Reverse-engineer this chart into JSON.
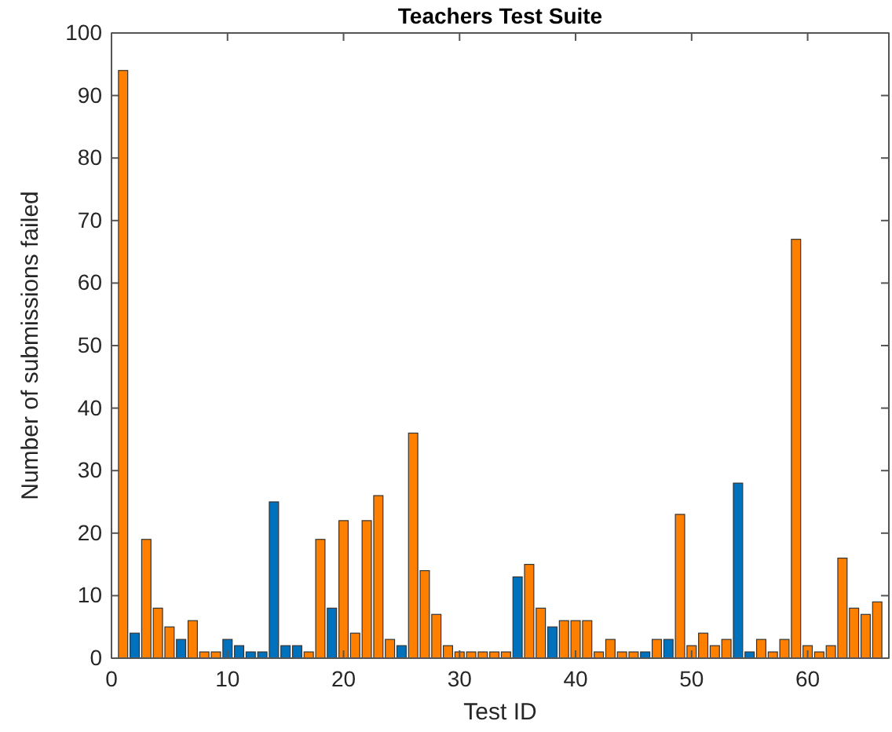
{
  "chart_data": {
    "type": "bar",
    "title": "Teachers Test Suite",
    "xlabel": "Test ID",
    "ylabel": "Number of submissions failed",
    "x": [
      1,
      2,
      3,
      4,
      5,
      6,
      7,
      8,
      9,
      10,
      11,
      12,
      13,
      14,
      15,
      16,
      17,
      18,
      19,
      20,
      21,
      22,
      23,
      24,
      25,
      26,
      27,
      28,
      29,
      30,
      31,
      32,
      33,
      34,
      35,
      36,
      37,
      38,
      39,
      40,
      41,
      42,
      43,
      44,
      45,
      46,
      47,
      48,
      49,
      50,
      51,
      52,
      53,
      54,
      55,
      56,
      57,
      58,
      59,
      60,
      61,
      62,
      63,
      64,
      65,
      66
    ],
    "values": [
      94,
      4,
      19,
      8,
      5,
      3,
      6,
      1,
      1,
      3,
      2,
      1,
      1,
      25,
      2,
      2,
      1,
      19,
      8,
      22,
      4,
      22,
      26,
      3,
      2,
      36,
      14,
      7,
      2,
      1,
      1,
      1,
      1,
      1,
      13,
      15,
      8,
      5,
      6,
      6,
      6,
      1,
      3,
      1,
      1,
      1,
      3,
      3,
      23,
      2,
      4,
      2,
      3,
      28,
      1,
      3,
      1,
      3,
      67,
      2,
      1,
      2,
      16,
      8,
      7,
      9
    ],
    "colors": [
      "#ff8000",
      "#0072bd",
      "#ff8000",
      "#ff8000",
      "#ff8000",
      "#0072bd",
      "#ff8000",
      "#ff8000",
      "#ff8000",
      "#0072bd",
      "#0072bd",
      "#0072bd",
      "#0072bd",
      "#0072bd",
      "#0072bd",
      "#0072bd",
      "#ff8000",
      "#ff8000",
      "#0072bd",
      "#ff8000",
      "#ff8000",
      "#ff8000",
      "#ff8000",
      "#ff8000",
      "#0072bd",
      "#ff8000",
      "#ff8000",
      "#ff8000",
      "#ff8000",
      "#ff8000",
      "#ff8000",
      "#ff8000",
      "#ff8000",
      "#ff8000",
      "#0072bd",
      "#ff8000",
      "#ff8000",
      "#0072bd",
      "#ff8000",
      "#ff8000",
      "#ff8000",
      "#ff8000",
      "#ff8000",
      "#ff8000",
      "#ff8000",
      "#0072bd",
      "#ff8000",
      "#0072bd",
      "#ff8000",
      "#ff8000",
      "#ff8000",
      "#ff8000",
      "#ff8000",
      "#0072bd",
      "#0072bd",
      "#ff8000",
      "#ff8000",
      "#ff8000",
      "#ff8000",
      "#ff8000",
      "#ff8000",
      "#ff8000",
      "#ff8000",
      "#ff8000",
      "#ff8000",
      "#ff8000"
    ],
    "xlim": [
      0,
      67
    ],
    "xticks": [
      0,
      10,
      20,
      30,
      40,
      50,
      60
    ],
    "ylim": [
      0,
      100
    ],
    "yticks": [
      0,
      10,
      20,
      30,
      40,
      50,
      60,
      70,
      80,
      90,
      100
    ]
  }
}
